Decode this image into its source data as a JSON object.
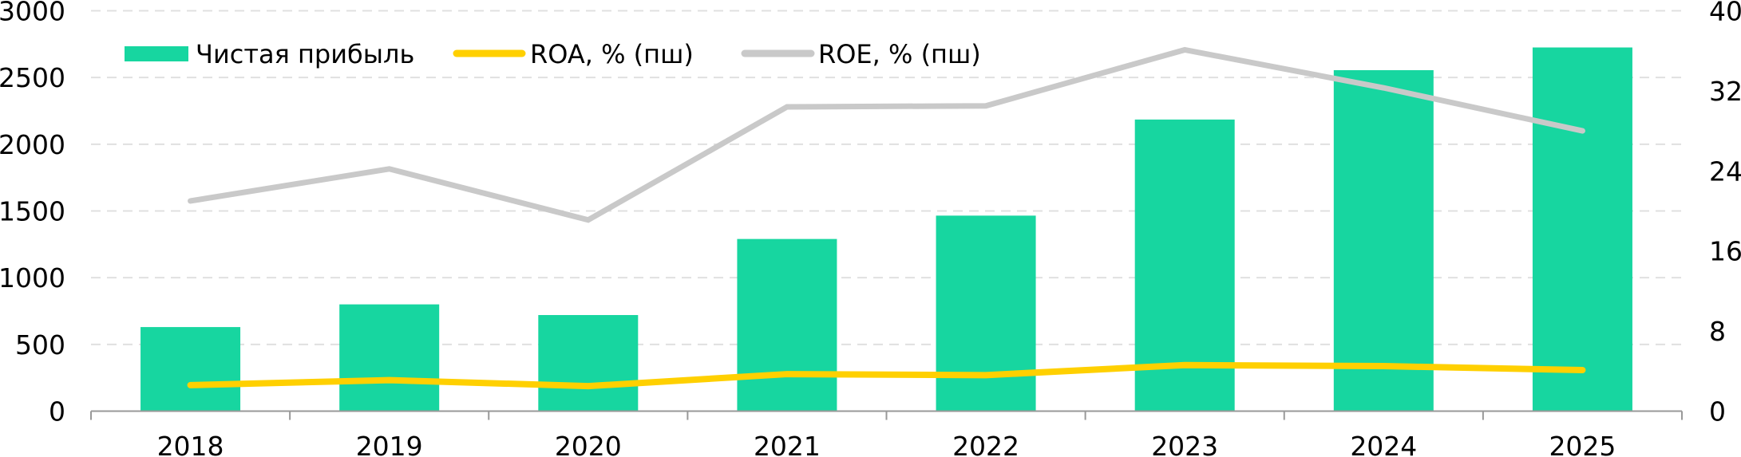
{
  "chart_data": {
    "type": "bar",
    "categories": [
      "2018",
      "2019",
      "2020",
      "2021",
      "2022",
      "2023",
      "2024",
      "2025"
    ],
    "series": [
      {
        "name": "Чистая прибыль",
        "type": "bar",
        "axis": "left",
        "color": "#17D6A0",
        "values": [
          630,
          800,
          720,
          1290,
          1465,
          2185,
          2555,
          2725
        ]
      },
      {
        "name": "ROA, % (пш)",
        "type": "line",
        "axis": "right",
        "color": "#FFD000",
        "values": [
          2.6,
          3.1,
          2.5,
          3.7,
          3.6,
          4.6,
          4.5,
          4.1
        ]
      },
      {
        "name": "ROE, % (пш)",
        "type": "line",
        "axis": "right",
        "color": "#C9C9C9",
        "values": [
          21.0,
          24.2,
          19.1,
          30.4,
          30.5,
          36.1,
          32.3,
          28.0
        ]
      }
    ],
    "y_left": {
      "lim": [
        0,
        3000
      ],
      "ticks": [
        "0",
        "500",
        "1000",
        "1500",
        "2000",
        "2500",
        "3000"
      ]
    },
    "y_right": {
      "lim": [
        0,
        40
      ],
      "ticks": [
        "0",
        "8",
        "16",
        "24",
        "32",
        "40"
      ]
    },
    "grid": "horizontal dashed",
    "legend": "top-left"
  }
}
